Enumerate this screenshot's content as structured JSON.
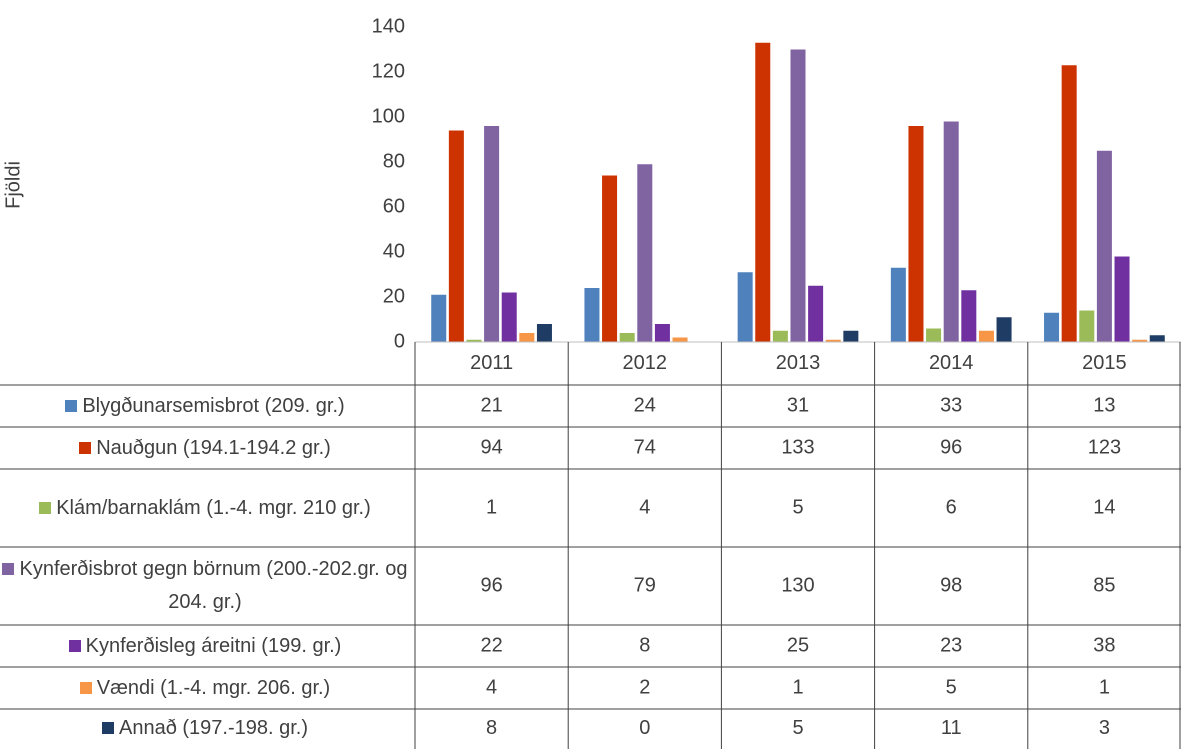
{
  "chart_data": {
    "type": "bar",
    "y_label": "Fjöldi",
    "categories": [
      "2011",
      "2012",
      "2013",
      "2014",
      "2015"
    ],
    "ylim": [
      0,
      140
    ],
    "yticks": [
      0,
      20,
      40,
      60,
      80,
      100,
      120,
      140
    ],
    "series": [
      {
        "name": "Blygðunarsemisbrot (209. gr.)",
        "color": "#4f81bd",
        "values": [
          21,
          24,
          31,
          33,
          13
        ]
      },
      {
        "name": "Nauðgun (194.1-194.2 gr.)",
        "color": "#cc3300",
        "values": [
          94,
          74,
          133,
          96,
          123
        ]
      },
      {
        "name": "Klám/barnaklám (1.-4. mgr. 210 gr.)",
        "color": "#9bbb59",
        "values": [
          1,
          4,
          5,
          6,
          14
        ]
      },
      {
        "name": "Kynferðisbrot gegn börnum (200.-202.gr. og 204. gr.)",
        "color": "#8064a2",
        "values": [
          96,
          79,
          130,
          98,
          85
        ]
      },
      {
        "name": "Kynferðisleg áreitni (199. gr.)",
        "color": "#7030a0",
        "values": [
          22,
          8,
          25,
          23,
          38
        ]
      },
      {
        "name": "Vændi (1.-4. mgr. 206. gr.)",
        "color": "#f79646",
        "values": [
          4,
          2,
          1,
          5,
          1
        ]
      },
      {
        "name": "Annað (197.-198. gr.)",
        "color": "#1f3d64",
        "values": [
          8,
          0,
          5,
          11,
          3
        ]
      }
    ]
  }
}
